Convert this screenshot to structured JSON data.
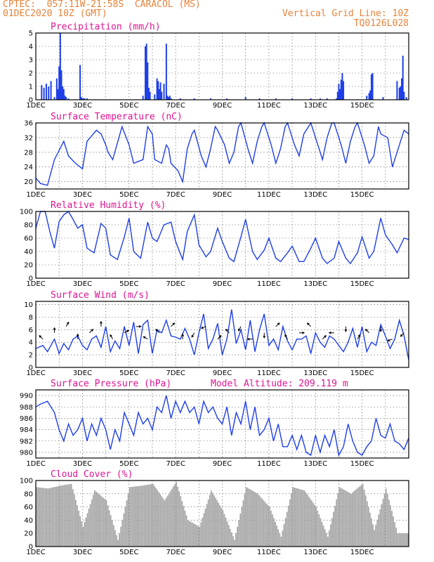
{
  "header": {
    "station": "CPTEC:  057:11W-21:58S  CARACOL (MS)",
    "date": "01DEC2020 10Z (GMT)",
    "vertical_grid": "Vertical Grid Line: 10Z",
    "code": "TQ0126L028"
  },
  "colors": {
    "series": "#1f3fe8",
    "title": "#e01490",
    "header": "#e8823a",
    "cloud": "#a6a6a6"
  },
  "chart_data": [
    {
      "id": "precip",
      "type": "bar",
      "title": "Precipitation (mm/h)",
      "xlabels": [
        "1DEC",
        "3DEC",
        "5DEC",
        "7DEC",
        "9DEC",
        "11DEC",
        "13DEC",
        "15DEC"
      ],
      "ylim": [
        0,
        5
      ],
      "yticks": [
        0,
        1,
        2,
        3,
        4,
        5
      ],
      "grid": true,
      "x": [
        0.25,
        0.35,
        0.45,
        0.55,
        0.65,
        0.8,
        0.9,
        0.95,
        1.0,
        1.05,
        1.1,
        1.15,
        1.2,
        1.25,
        1.3,
        1.4,
        1.9,
        1.95,
        2.0,
        2.05,
        2.1,
        2.2,
        4.6,
        4.7,
        4.75,
        4.8,
        4.85,
        4.9,
        5.1,
        5.2,
        5.25,
        5.3,
        5.35,
        5.4,
        5.5,
        5.6,
        5.65,
        5.7,
        5.75,
        5.8,
        6.2,
        6.8,
        7.5,
        8.2,
        9.0,
        9.6,
        10.3,
        11.0,
        11.8,
        12.2,
        12.5,
        12.9,
        12.95,
        13.0,
        13.05,
        13.1,
        13.15,
        13.2,
        14.2,
        14.3,
        14.35,
        14.4,
        14.45,
        14.9,
        15.5,
        15.6,
        15.65,
        15.7,
        15.75,
        15.8,
        15.9
      ],
      "values": [
        1.1,
        0.9,
        1.2,
        1.0,
        1.4,
        0.2,
        1.6,
        0.8,
        2.5,
        5.0,
        2.2,
        1.0,
        0.8,
        0.3,
        0.2,
        0.1,
        2.6,
        0.2,
        0.1,
        0.1,
        0.1,
        0.1,
        0.3,
        4.0,
        4.2,
        2.8,
        0.9,
        0.6,
        0.4,
        1.6,
        1.4,
        0.8,
        1.3,
        0.6,
        1.2,
        4.2,
        0.3,
        0.2,
        0.3,
        0.1,
        0.1,
        0.1,
        0.1,
        0.1,
        0.2,
        0.1,
        0.1,
        0.1,
        0.1,
        0.1,
        0.1,
        0.1,
        0.6,
        1.2,
        0.8,
        1.5,
        2.0,
        1.4,
        0.3,
        0.5,
        0.7,
        1.9,
        2.0,
        0.2,
        1.4,
        0.9,
        1.0,
        1.6,
        3.3,
        0.6,
        0.2
      ]
    },
    {
      "id": "temp",
      "type": "line",
      "title": "Surface Temperature (nC)",
      "xlabels": [
        "1DEC",
        "3DEC",
        "5DEC",
        "7DEC",
        "9DEC",
        "11DEC",
        "13DEC",
        "15DEC"
      ],
      "ylim": [
        18,
        36
      ],
      "yticks": [
        20,
        24,
        28,
        32,
        36
      ],
      "grid": true,
      "x": [
        0,
        0.2,
        0.5,
        0.8,
        1.2,
        1.4,
        1.7,
        2.0,
        2.2,
        2.6,
        2.8,
        3.0,
        3.1,
        3.3,
        3.7,
        4.0,
        4.2,
        4.6,
        4.8,
        5.0,
        5.1,
        5.4,
        5.6,
        5.7,
        5.8,
        6.1,
        6.3,
        6.5,
        6.7,
        6.8,
        7.1,
        7.3,
        7.5,
        7.7,
        7.8,
        8.1,
        8.3,
        8.5,
        8.7,
        8.8,
        9.1,
        9.3,
        9.5,
        9.7,
        9.8,
        10.1,
        10.3,
        10.5,
        10.7,
        10.8,
        11.1,
        11.3,
        11.5,
        11.7,
        11.8,
        12.1,
        12.3,
        12.5,
        12.7,
        12.8,
        13.1,
        13.3,
        13.5,
        13.7,
        13.8,
        14.1,
        14.3,
        14.5,
        14.7,
        14.8,
        15.1,
        15.3,
        15.5,
        15.7,
        15.8,
        16.0
      ],
      "values": [
        21,
        19.5,
        19,
        26,
        31,
        27,
        25,
        23.5,
        31,
        34,
        33,
        30,
        28,
        26,
        35,
        30,
        25,
        26,
        35,
        33,
        26,
        25,
        30,
        29,
        25,
        23,
        20,
        29,
        33,
        34,
        27,
        24,
        29,
        35,
        34,
        30,
        25,
        28,
        35,
        36,
        29,
        25,
        31,
        35,
        36,
        30,
        25,
        29,
        35,
        36,
        30,
        27,
        33,
        35,
        36,
        30,
        26,
        32,
        36,
        36,
        30,
        25,
        31,
        35,
        36,
        30,
        25,
        27,
        35,
        33,
        32,
        24,
        28,
        32,
        34,
        33
      ]
    },
    {
      "id": "rh",
      "type": "line",
      "title": "Relative Humidity (%)",
      "xlabels": [
        "1DEC",
        "3DEC",
        "5DEC",
        "7DEC",
        "9DEC",
        "11DEC",
        "13DEC",
        "15DEC"
      ],
      "ylim": [
        0,
        100
      ],
      "yticks": [
        0,
        20,
        40,
        60,
        80,
        100
      ],
      "grid": true,
      "x": [
        0,
        0.2,
        0.4,
        0.6,
        0.8,
        1.0,
        1.2,
        1.4,
        1.6,
        1.8,
        2.0,
        2.2,
        2.5,
        2.8,
        3.0,
        3.2,
        3.5,
        3.8,
        4.0,
        4.2,
        4.5,
        4.8,
        5.0,
        5.2,
        5.5,
        5.8,
        6.0,
        6.3,
        6.5,
        6.8,
        7.0,
        7.3,
        7.5,
        7.8,
        8.0,
        8.3,
        8.5,
        8.8,
        9.0,
        9.3,
        9.5,
        9.8,
        10.0,
        10.3,
        10.5,
        10.8,
        11.0,
        11.3,
        11.5,
        11.8,
        12.0,
        12.3,
        12.5,
        12.8,
        13.0,
        13.3,
        13.5,
        13.8,
        14.0,
        14.3,
        14.5,
        14.8,
        15.0,
        15.3,
        15.5,
        15.8,
        16.0
      ],
      "values": [
        75,
        100,
        100,
        70,
        45,
        85,
        95,
        100,
        88,
        75,
        80,
        45,
        38,
        82,
        75,
        35,
        28,
        62,
        90,
        40,
        30,
        84,
        60,
        55,
        80,
        84,
        55,
        28,
        70,
        95,
        50,
        32,
        40,
        75,
        55,
        30,
        25,
        62,
        88,
        40,
        28,
        42,
        60,
        30,
        25,
        38,
        48,
        25,
        25,
        45,
        60,
        30,
        22,
        30,
        55,
        30,
        22,
        38,
        62,
        30,
        40,
        90,
        65,
        50,
        38,
        60,
        58
      ]
    },
    {
      "id": "wind",
      "type": "line",
      "title": "Surface Wind (m/s)",
      "xlabels": [
        "1DEC",
        "3DEC",
        "5DEC",
        "7DEC",
        "9DEC",
        "11DEC",
        "13DEC",
        "15DEC"
      ],
      "ylim": [
        0,
        10.5
      ],
      "yticks": [
        0,
        2,
        4,
        6,
        8,
        10
      ],
      "grid": true,
      "x": [
        0,
        0.3,
        0.5,
        0.8,
        1.0,
        1.2,
        1.4,
        1.6,
        1.8,
        2.0,
        2.2,
        2.4,
        2.6,
        2.8,
        3.0,
        3.2,
        3.4,
        3.6,
        3.8,
        4.0,
        4.2,
        4.4,
        4.6,
        4.8,
        5.0,
        5.2,
        5.4,
        5.6,
        5.8,
        6.0,
        6.2,
        6.4,
        6.6,
        6.8,
        7.0,
        7.2,
        7.4,
        7.6,
        7.8,
        8.0,
        8.2,
        8.4,
        8.6,
        8.8,
        9.0,
        9.2,
        9.4,
        9.6,
        9.8,
        10.0,
        10.2,
        10.4,
        10.6,
        10.8,
        11.0,
        11.2,
        11.4,
        11.6,
        11.8,
        12.0,
        12.2,
        12.4,
        12.6,
        12.8,
        13.0,
        13.2,
        13.4,
        13.6,
        13.8,
        14.0,
        14.2,
        14.4,
        14.6,
        14.8,
        15.0,
        15.2,
        15.4,
        15.6,
        15.8,
        16.0
      ],
      "values": [
        3,
        3.5,
        2.5,
        4.5,
        2.2,
        3.8,
        2.8,
        4.5,
        5,
        3.5,
        2.8,
        4.5,
        5,
        3.2,
        6.5,
        2.5,
        4.2,
        3,
        6.5,
        3.5,
        7.2,
        2.2,
        6.8,
        7.5,
        2.2,
        6,
        5.5,
        7.5,
        5,
        4.8,
        4.5,
        6.2,
        4.5,
        2,
        5.5,
        8.5,
        3,
        4.5,
        7,
        2,
        4.5,
        9.2,
        3.8,
        6,
        2.8,
        7.5,
        2.5,
        6,
        8.5,
        3.5,
        4.5,
        2.8,
        6.5,
        4.2,
        2.8,
        4.5,
        4.5,
        5,
        2.2,
        5.5,
        4,
        3.2,
        5,
        4.5,
        3.5,
        2.5,
        4,
        6.2,
        3.2,
        6.5,
        2.5,
        4,
        3.5,
        6.8,
        5,
        3,
        4.5,
        7.5,
        5,
        1.2
      ]
    },
    {
      "id": "pressure",
      "type": "line",
      "title": "Surface Pressure (hPa)",
      "annotation": "Model Altitude: 209.119 m",
      "xlabels": [
        "1DEC",
        "3DEC",
        "5DEC",
        "7DEC",
        "9DEC",
        "11DEC",
        "13DEC",
        "15DEC"
      ],
      "ylim": [
        979,
        991
      ],
      "yticks": [
        980,
        982,
        984,
        986,
        988,
        990
      ],
      "grid": true,
      "x": [
        0,
        0.2,
        0.5,
        0.8,
        1.0,
        1.2,
        1.4,
        1.6,
        1.8,
        2.0,
        2.2,
        2.4,
        2.6,
        2.8,
        3.0,
        3.2,
        3.4,
        3.6,
        3.8,
        4.0,
        4.2,
        4.4,
        4.6,
        4.8,
        5.0,
        5.2,
        5.4,
        5.6,
        5.8,
        6.0,
        6.2,
        6.4,
        6.6,
        6.8,
        7.0,
        7.2,
        7.4,
        7.6,
        7.8,
        8.0,
        8.2,
        8.4,
        8.6,
        8.8,
        9.0,
        9.2,
        9.4,
        9.6,
        9.8,
        10.0,
        10.2,
        10.4,
        10.6,
        10.8,
        11.0,
        11.2,
        11.4,
        11.6,
        11.8,
        12.0,
        12.2,
        12.4,
        12.6,
        12.8,
        13.0,
        13.2,
        13.4,
        13.6,
        13.8,
        14.0,
        14.2,
        14.4,
        14.6,
        14.8,
        15.0,
        15.2,
        15.4,
        15.6,
        15.8,
        16.0
      ],
      "values": [
        988,
        988.5,
        989,
        987,
        984,
        982,
        985,
        983,
        984,
        986,
        982,
        985,
        983,
        986,
        984,
        980.5,
        984,
        982,
        987,
        985,
        983,
        987,
        985,
        986,
        984,
        988,
        987,
        990,
        986,
        989,
        987,
        989,
        987,
        988,
        985,
        989,
        987,
        988,
        986,
        985,
        988,
        983,
        987,
        985,
        989,
        984,
        988,
        983,
        984,
        986,
        982,
        985,
        981,
        981,
        983,
        980.5,
        983,
        980,
        979.5,
        983,
        980,
        983,
        981,
        984,
        979.5,
        981,
        985,
        982,
        980,
        979.5,
        981,
        982,
        986,
        983,
        982.5,
        985,
        982,
        981.5,
        980.5,
        982.5
      ]
    },
    {
      "id": "cloud",
      "type": "bar",
      "title": "Cloud Cover (%)",
      "xlabels": [
        "1DEC",
        "3DEC",
        "5DEC",
        "7DEC",
        "9DEC",
        "11DEC",
        "13DEC",
        "15DEC"
      ],
      "ylim": [
        0,
        100
      ],
      "yticks": [
        0,
        20,
        40,
        60,
        80,
        100
      ],
      "grid": true,
      "x": [
        0,
        0.5,
        1,
        1.5,
        2,
        2.5,
        3,
        3.5,
        4,
        4.5,
        5,
        5.5,
        6,
        6.5,
        7,
        7.5,
        8,
        8.5,
        9,
        9.5,
        10,
        10.5,
        11,
        11.5,
        12,
        12.5,
        13,
        13.5,
        14,
        14.5,
        15,
        15.5
      ],
      "values": [
        90,
        88,
        92,
        95,
        30,
        85,
        70,
        10,
        90,
        92,
        95,
        70,
        98,
        40,
        30,
        85,
        55,
        10,
        90,
        80,
        60,
        15,
        90,
        85,
        60,
        15,
        90,
        80,
        95,
        25,
        88,
        20
      ]
    }
  ]
}
